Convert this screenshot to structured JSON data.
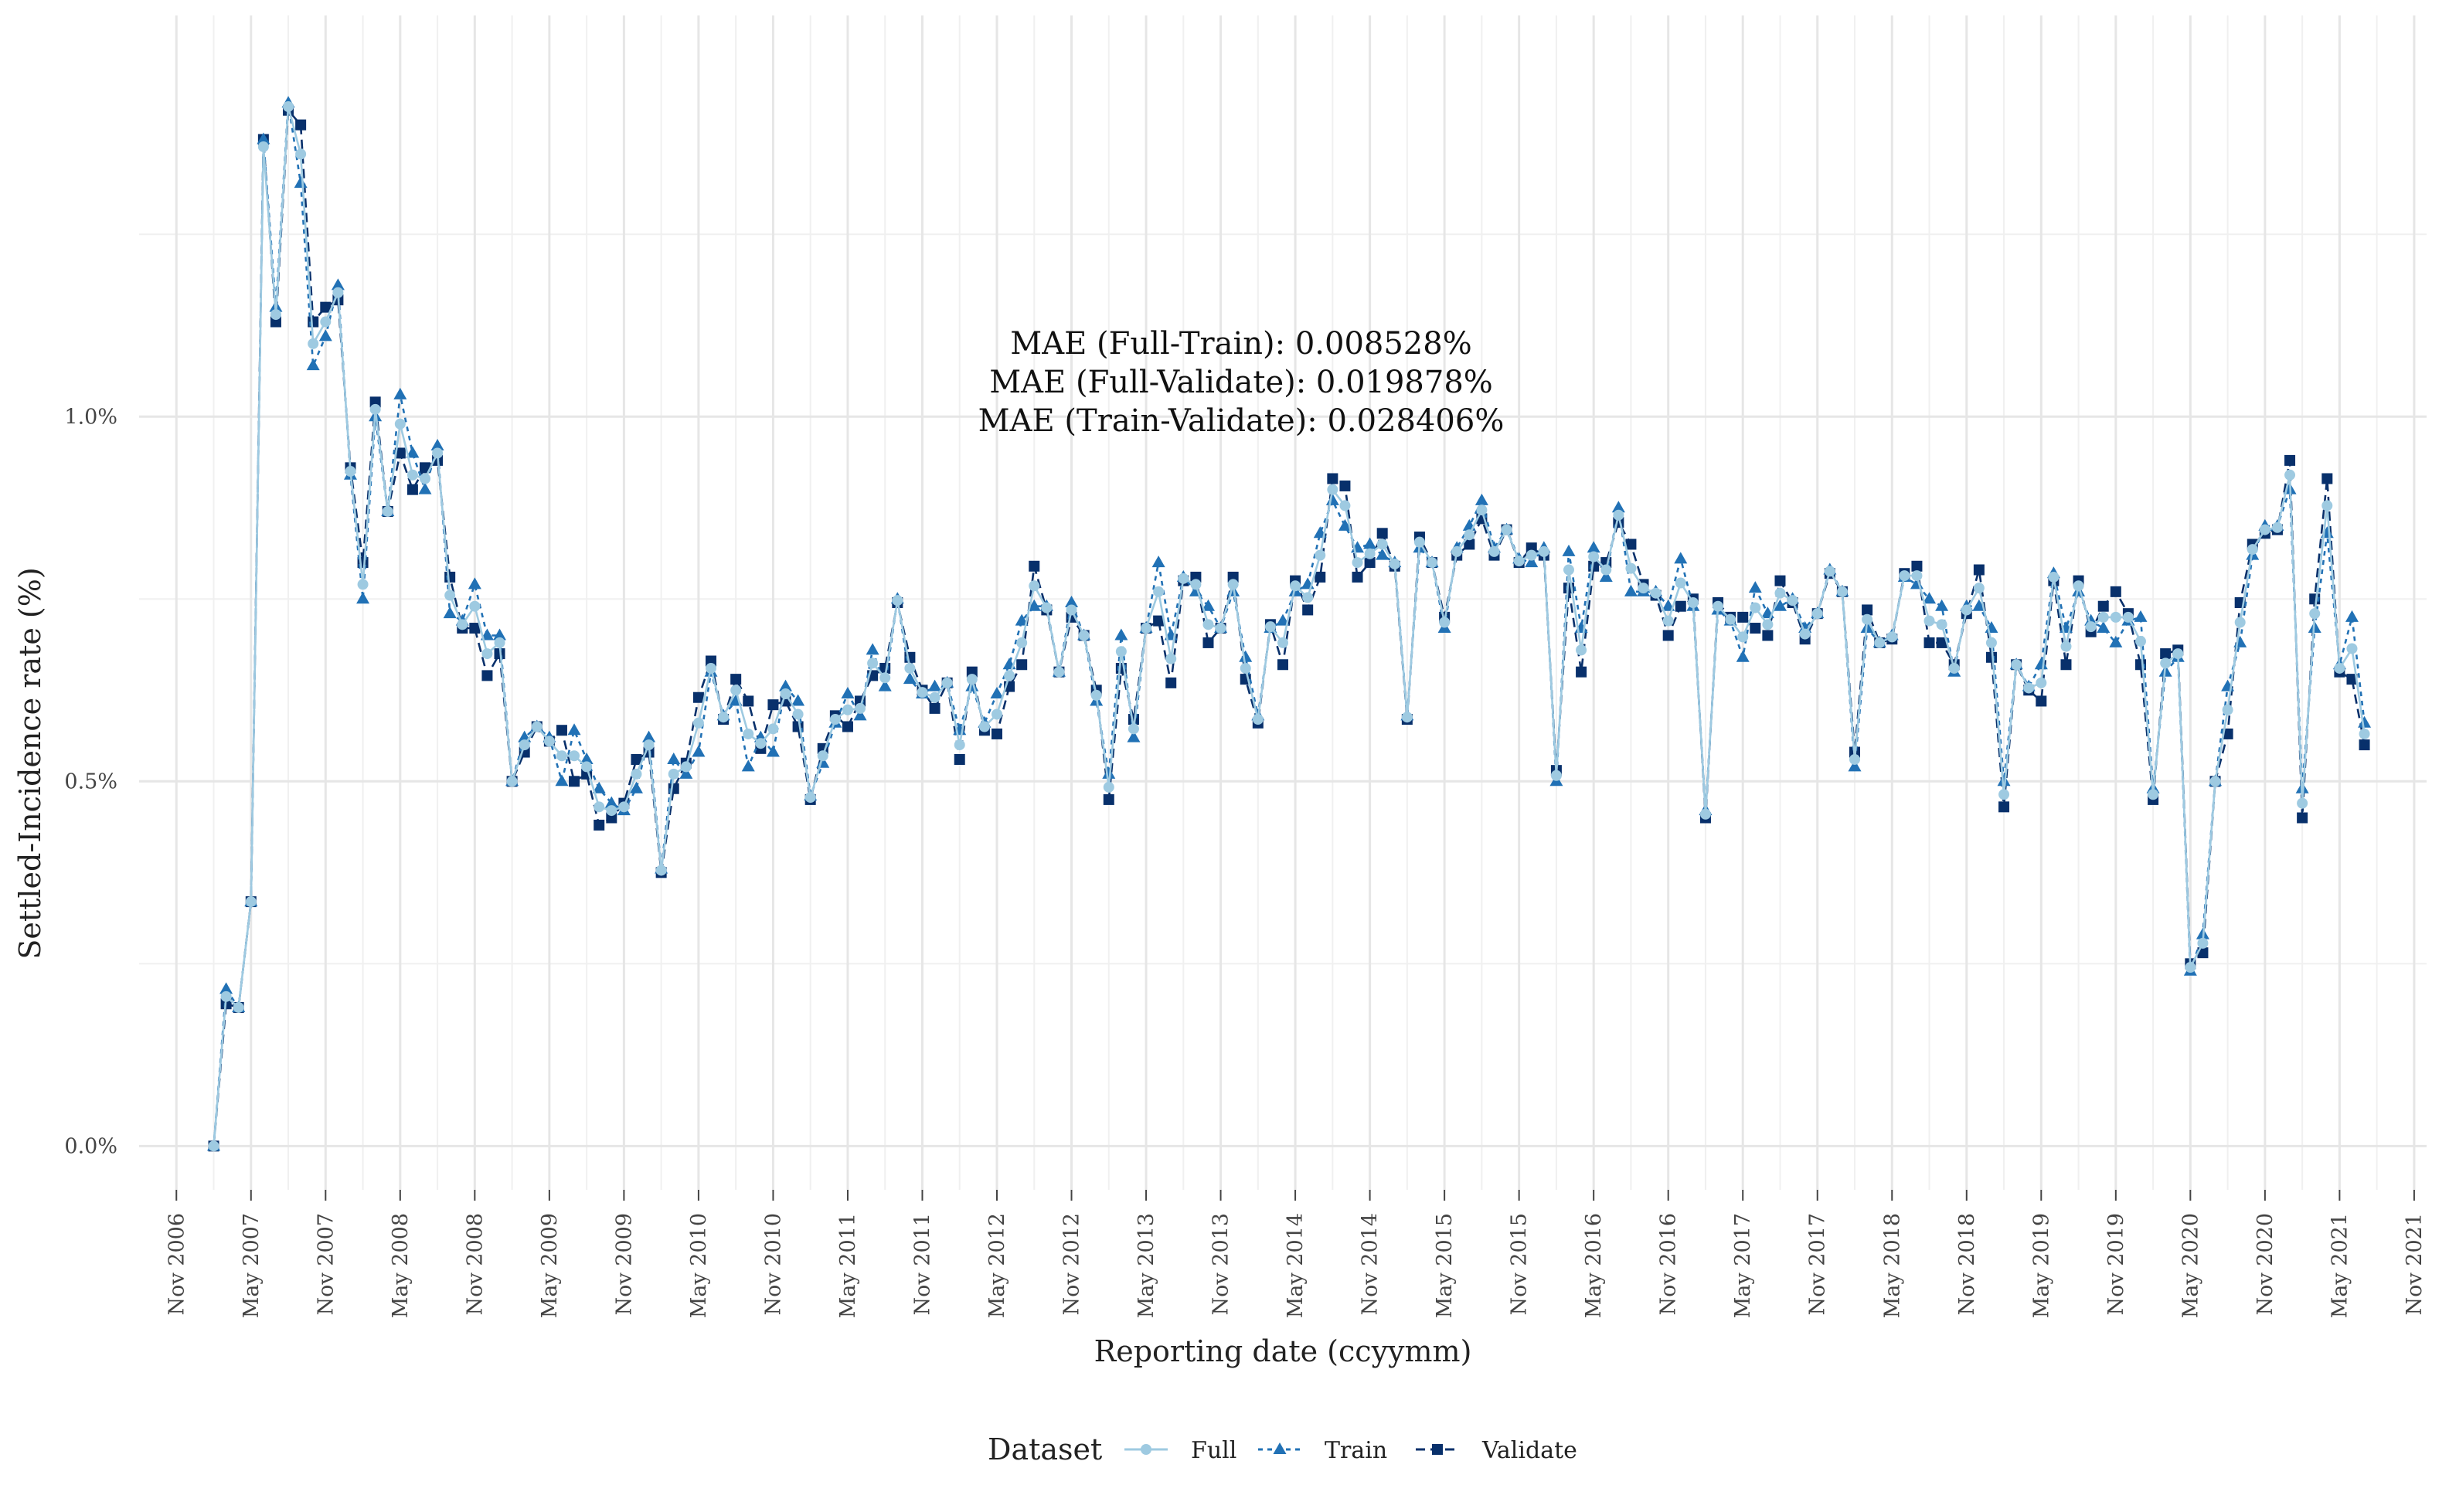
{
  "chart_data": {
    "type": "line",
    "title": "",
    "xlabel": "Reporting date (ccyymm)",
    "ylabel": "Settled-Incidence rate (%)",
    "x_ticks": [
      "Nov 2006",
      "May 2007",
      "Nov 2007",
      "May 2008",
      "Nov 2008",
      "May 2009",
      "Nov 2009",
      "May 2010",
      "Nov 2010",
      "May 2011",
      "Nov 2011",
      "May 2012",
      "Nov 2012",
      "May 2013",
      "Nov 2013",
      "May 2014",
      "Nov 2014",
      "May 2015",
      "Nov 2015",
      "May 2016",
      "Nov 2016",
      "May 2017",
      "Nov 2017",
      "May 2018",
      "Nov 2018",
      "May 2019",
      "Nov 2019",
      "May 2020",
      "Nov 2020",
      "May 2021",
      "Nov 2021"
    ],
    "y_ticks": [
      "0.0%",
      "0.5%",
      "1.0%"
    ],
    "ylim": [
      -0.06,
      1.55
    ],
    "xlim": [
      "2006-08",
      "2021-12"
    ],
    "x_start": "2007-02",
    "grid": true,
    "legend": {
      "title": "Dataset",
      "position": "bottom",
      "entries": [
        "Full",
        "Train",
        "Validate"
      ]
    },
    "annotations": [
      "MAE (Full-Train): 0.008528%",
      "MAE (Full-Validate): 0.019878%",
      "MAE (Train-Validate): 0.028406%"
    ],
    "series": [
      {
        "name": "Validate",
        "color": "#08306b",
        "marker": "square",
        "values": [
          0.0,
          0.195,
          0.19,
          0.335,
          1.38,
          1.13,
          1.42,
          1.4,
          1.13,
          1.15,
          1.16,
          0.93,
          0.8,
          1.02,
          0.87,
          0.95,
          0.9,
          0.93,
          0.94,
          0.78,
          0.71,
          0.71,
          0.645,
          0.675,
          0.5,
          0.54,
          0.575,
          0.555,
          0.57,
          0.5,
          0.51,
          0.44,
          0.45,
          0.47,
          0.53,
          0.54,
          0.375,
          0.49,
          0.525,
          0.615,
          0.665,
          0.585,
          0.64,
          0.61,
          0.545,
          0.605,
          0.61,
          0.575,
          0.475,
          0.545,
          0.59,
          0.575,
          0.61,
          0.645,
          0.655,
          0.745,
          0.67,
          0.625,
          0.6,
          0.635,
          0.53,
          0.65,
          0.57,
          0.565,
          0.63,
          0.66,
          0.795,
          0.735,
          0.65,
          0.725,
          0.7,
          0.625,
          0.475,
          0.655,
          0.585,
          0.71,
          0.72,
          0.635,
          0.775,
          0.78,
          0.69,
          0.71,
          0.78,
          0.64,
          0.58,
          0.715,
          0.66,
          0.775,
          0.735,
          0.78,
          0.915,
          0.905,
          0.78,
          0.8,
          0.84,
          0.795,
          0.585,
          0.835,
          0.8,
          0.725,
          0.81,
          0.825,
          0.86,
          0.81,
          0.845,
          0.8,
          0.82,
          0.81,
          0.515,
          0.765,
          0.65,
          0.795,
          0.8,
          0.855,
          0.825,
          0.77,
          0.755,
          0.7,
          0.74,
          0.75,
          0.45,
          0.745,
          0.725,
          0.725,
          0.71,
          0.7,
          0.775,
          0.745,
          0.695,
          0.73,
          0.785,
          0.76,
          0.54,
          0.735,
          0.69,
          0.695,
          0.785,
          0.795,
          0.69,
          0.69,
          0.66,
          0.73,
          0.79,
          0.67,
          0.465,
          0.66,
          0.625,
          0.61,
          0.775,
          0.66,
          0.775,
          0.705,
          0.74,
          0.76,
          0.73,
          0.66,
          0.475,
          0.675,
          0.68,
          0.25,
          0.265,
          0.5,
          0.565,
          0.745,
          0.825,
          0.84,
          0.845,
          0.94,
          0.45,
          0.75,
          0.915,
          0.65,
          0.64,
          0.55
        ]
      },
      {
        "name": "Train",
        "color": "#2171b5",
        "marker": "triangle",
        "values": [
          0.0,
          0.215,
          0.19,
          0.335,
          1.38,
          1.15,
          1.43,
          1.32,
          1.07,
          1.11,
          1.18,
          0.92,
          0.75,
          1.0,
          0.87,
          1.03,
          0.95,
          0.9,
          0.96,
          0.73,
          0.72,
          0.77,
          0.7,
          0.7,
          0.5,
          0.56,
          0.575,
          0.56,
          0.5,
          0.57,
          0.53,
          0.49,
          0.47,
          0.46,
          0.49,
          0.56,
          0.38,
          0.53,
          0.51,
          0.54,
          0.65,
          0.59,
          0.61,
          0.52,
          0.56,
          0.54,
          0.63,
          0.61,
          0.48,
          0.525,
          0.58,
          0.62,
          0.59,
          0.68,
          0.63,
          0.75,
          0.64,
          0.62,
          0.63,
          0.635,
          0.57,
          0.63,
          0.58,
          0.62,
          0.66,
          0.72,
          0.74,
          0.74,
          0.65,
          0.745,
          0.7,
          0.61,
          0.51,
          0.7,
          0.56,
          0.71,
          0.8,
          0.7,
          0.78,
          0.76,
          0.74,
          0.71,
          0.76,
          0.67,
          0.59,
          0.71,
          0.72,
          0.76,
          0.77,
          0.84,
          0.885,
          0.85,
          0.82,
          0.825,
          0.81,
          0.8,
          0.59,
          0.82,
          0.8,
          0.71,
          0.82,
          0.85,
          0.885,
          0.82,
          0.845,
          0.805,
          0.8,
          0.82,
          0.5,
          0.815,
          0.71,
          0.82,
          0.78,
          0.875,
          0.76,
          0.76,
          0.76,
          0.74,
          0.805,
          0.74,
          0.46,
          0.735,
          0.72,
          0.67,
          0.765,
          0.73,
          0.74,
          0.75,
          0.71,
          0.73,
          0.79,
          0.76,
          0.52,
          0.71,
          0.69,
          0.7,
          0.78,
          0.77,
          0.75,
          0.74,
          0.65,
          0.74,
          0.74,
          0.71,
          0.5,
          0.66,
          0.63,
          0.66,
          0.785,
          0.71,
          0.76,
          0.72,
          0.71,
          0.69,
          0.72,
          0.725,
          0.49,
          0.65,
          0.67,
          0.24,
          0.29,
          0.5,
          0.63,
          0.69,
          0.81,
          0.85,
          0.85,
          0.9,
          0.49,
          0.71,
          0.84,
          0.66,
          0.725,
          0.58
        ]
      },
      {
        "name": "Full",
        "color": "#9ecae1",
        "marker": "circle",
        "values": [
          0.0,
          0.205,
          0.19,
          0.335,
          1.37,
          1.14,
          1.425,
          1.36,
          1.1,
          1.13,
          1.17,
          0.925,
          0.77,
          1.01,
          0.87,
          0.99,
          0.92,
          0.915,
          0.95,
          0.755,
          0.715,
          0.74,
          0.675,
          0.69,
          0.5,
          0.55,
          0.575,
          0.555,
          0.535,
          0.535,
          0.52,
          0.465,
          0.46,
          0.465,
          0.51,
          0.55,
          0.378,
          0.51,
          0.52,
          0.58,
          0.655,
          0.588,
          0.625,
          0.565,
          0.552,
          0.572,
          0.62,
          0.592,
          0.478,
          0.535,
          0.585,
          0.598,
          0.6,
          0.662,
          0.642,
          0.748,
          0.655,
          0.622,
          0.615,
          0.635,
          0.55,
          0.64,
          0.575,
          0.592,
          0.645,
          0.69,
          0.768,
          0.738,
          0.65,
          0.735,
          0.7,
          0.618,
          0.492,
          0.678,
          0.572,
          0.71,
          0.76,
          0.668,
          0.778,
          0.77,
          0.715,
          0.71,
          0.77,
          0.655,
          0.585,
          0.712,
          0.69,
          0.768,
          0.752,
          0.81,
          0.9,
          0.878,
          0.8,
          0.812,
          0.825,
          0.798,
          0.588,
          0.828,
          0.8,
          0.718,
          0.815,
          0.838,
          0.872,
          0.815,
          0.845,
          0.802,
          0.81,
          0.815,
          0.508,
          0.79,
          0.68,
          0.808,
          0.79,
          0.865,
          0.792,
          0.765,
          0.758,
          0.72,
          0.772,
          0.745,
          0.455,
          0.74,
          0.722,
          0.698,
          0.738,
          0.715,
          0.758,
          0.748,
          0.702,
          0.73,
          0.788,
          0.76,
          0.53,
          0.722,
          0.69,
          0.698,
          0.782,
          0.782,
          0.72,
          0.715,
          0.655,
          0.735,
          0.765,
          0.69,
          0.482,
          0.66,
          0.628,
          0.635,
          0.78,
          0.685,
          0.768,
          0.712,
          0.725,
          0.725,
          0.725,
          0.692,
          0.482,
          0.662,
          0.675,
          0.245,
          0.278,
          0.5,
          0.598,
          0.718,
          0.818,
          0.845,
          0.848,
          0.92,
          0.47,
          0.73,
          0.878,
          0.655,
          0.682,
          0.565
        ]
      }
    ]
  }
}
